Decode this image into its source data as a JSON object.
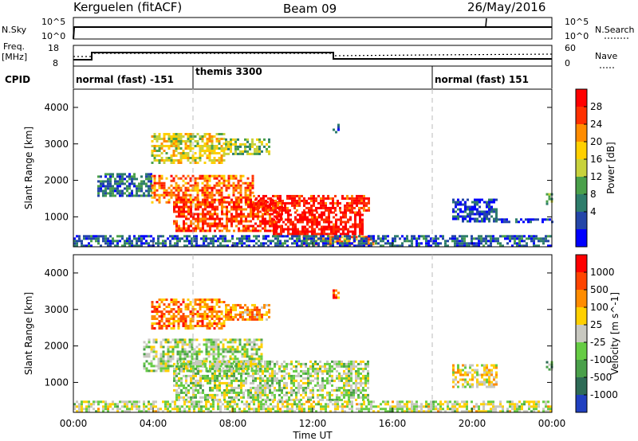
{
  "header": {
    "station": "Kerguelen (fitACF)",
    "beam": "Beam 09",
    "date": "26/May/2016"
  },
  "strip_panels": {
    "nsky": {
      "label": "N.Sky",
      "ticks": [
        "10^5",
        "10^0"
      ]
    },
    "nsearch": {
      "label": "N.Search",
      "ticks": [
        "10^5",
        "10^0"
      ]
    },
    "freq": {
      "label_top": "Freq.",
      "label_bottom": "[MHz]",
      "ticks": [
        "18",
        "8"
      ]
    },
    "nave": {
      "label": "Nave",
      "ticks": [
        "60",
        "0"
      ]
    },
    "cpid": {
      "label": "CPID",
      "segments": [
        {
          "name": "normal (fast) -151",
          "start_h": 0,
          "end_h": 6
        },
        {
          "name": "themis 3300",
          "start_h": 6,
          "end_h": 18
        },
        {
          "name": "normal (fast) 151",
          "start_h": 18,
          "end_h": 24
        }
      ]
    }
  },
  "chart_data": [
    {
      "type": "heatmap",
      "title": "",
      "xlabel": "Time UT",
      "ylabel": "Slant Range [km]",
      "colorbar_label": "Power [dB]",
      "colorbar_ticks": [
        "28",
        "24",
        "20",
        "16",
        "12",
        "8",
        "4"
      ],
      "colorbar_colors": [
        "#0000ff",
        "#2446a8",
        "#2e7d6b",
        "#4aa04a",
        "#c8d23c",
        "#ffd000",
        "#ff8c00",
        "#ff3000",
        "#ff0000"
      ],
      "x_ticks": [
        "00:00",
        "04:00",
        "08:00",
        "12:00",
        "16:00",
        "20:00",
        "00:00"
      ],
      "y_ticks": [
        "4000",
        "3000",
        "2000",
        "1000"
      ],
      "xlim_hours": [
        0,
        24
      ],
      "ylim_km": [
        180,
        4500
      ],
      "dashed_markers_h": [
        6,
        18
      ],
      "regions": [
        {
          "t0": 3.9,
          "t1": 7.6,
          "r0": 2450,
          "r1": 3300,
          "level": 0.55
        },
        {
          "t0": 7.6,
          "t1": 9.8,
          "r0": 2750,
          "r1": 3150,
          "level": 0.45
        },
        {
          "t0": 1.2,
          "t1": 3.9,
          "r0": 1600,
          "r1": 2200,
          "level": 0.25
        },
        {
          "t0": 3.9,
          "t1": 9.0,
          "r0": 1400,
          "r1": 2150,
          "level": 0.75
        },
        {
          "t0": 5.0,
          "t1": 10.5,
          "r0": 600,
          "r1": 1500,
          "level": 0.85
        },
        {
          "t0": 9.0,
          "t1": 14.8,
          "r0": 1150,
          "r1": 1600,
          "level": 0.9
        },
        {
          "t0": 10.0,
          "t1": 14.5,
          "r0": 500,
          "r1": 1150,
          "level": 0.95
        },
        {
          "t0": 11.5,
          "t1": 15.0,
          "r0": 220,
          "r1": 480,
          "level": 0.7
        },
        {
          "t0": 0.0,
          "t1": 24.0,
          "r0": 180,
          "r1": 500,
          "level": 0.2
        },
        {
          "t0": 19.0,
          "t1": 21.2,
          "r0": 900,
          "r1": 1500,
          "level": 0.15
        },
        {
          "t0": 21.2,
          "t1": 24.0,
          "r0": 860,
          "r1": 960,
          "level": 0.1
        },
        {
          "t0": 23.7,
          "t1": 24.0,
          "r0": 1350,
          "r1": 1650,
          "level": 0.35
        },
        {
          "t0": 13.0,
          "t1": 13.3,
          "r0": 3350,
          "r1": 3550,
          "level": 0.2
        }
      ]
    },
    {
      "type": "heatmap",
      "title": "",
      "xlabel": "Time UT",
      "ylabel": "Slant Range [km]",
      "colorbar_label": "Velocity [m s^-1]",
      "colorbar_ticks": [
        "1000",
        "500",
        "100",
        "25",
        "-25",
        "-100",
        "-500",
        "-1000"
      ],
      "colorbar_colors": [
        "#2040c0",
        "#2e6b56",
        "#4aa04a",
        "#66cc44",
        "#c8c8c0",
        "#ffd000",
        "#ff8c00",
        "#ff4400",
        "#ff0000"
      ],
      "x_ticks": [
        "00:00",
        "04:00",
        "08:00",
        "12:00",
        "16:00",
        "20:00",
        "00:00"
      ],
      "y_ticks": [
        "4000",
        "3000",
        "2000",
        "1000"
      ],
      "xlim_hours": [
        0,
        24
      ],
      "ylim_km": [
        180,
        4500
      ],
      "dashed_markers_h": [
        6,
        18
      ],
      "regions": [
        {
          "t0": 3.9,
          "t1": 7.6,
          "r0": 2450,
          "r1": 3300,
          "level": 0.75
        },
        {
          "t0": 7.6,
          "t1": 9.8,
          "r0": 2750,
          "r1": 3150,
          "level": 0.7
        },
        {
          "t0": 3.5,
          "t1": 9.5,
          "r0": 1300,
          "r1": 2200,
          "level": 0.45
        },
        {
          "t0": 5.0,
          "t1": 14.8,
          "r0": 500,
          "r1": 1600,
          "level": 0.45
        },
        {
          "t0": 0.0,
          "t1": 24.0,
          "r0": 180,
          "r1": 500,
          "level": 0.5
        },
        {
          "t0": 19.0,
          "t1": 21.2,
          "r0": 900,
          "r1": 1500,
          "level": 0.55
        },
        {
          "t0": 23.7,
          "t1": 24.0,
          "r0": 1350,
          "r1": 1650,
          "level": 0.3
        },
        {
          "t0": 13.0,
          "t1": 13.3,
          "r0": 3350,
          "r1": 3550,
          "level": 0.8
        }
      ]
    }
  ]
}
